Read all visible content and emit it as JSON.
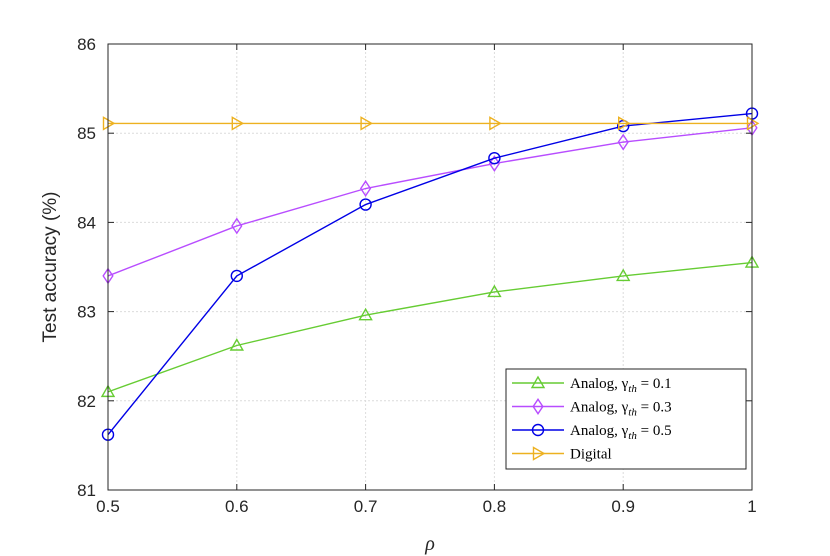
{
  "chart_data": {
    "type": "line",
    "x": [
      0.5,
      0.6,
      0.7,
      0.8,
      0.9,
      1
    ],
    "x_tick_labels": [
      "0.5",
      "0.6",
      "0.7",
      "0.8",
      "0.9",
      "1"
    ],
    "y_tick_labels": [
      "81",
      "82",
      "83",
      "84",
      "85",
      "86"
    ],
    "xlim": [
      0.5,
      1
    ],
    "ylim": [
      81,
      86
    ],
    "xlabel": "ρ",
    "ylabel": "Test accuracy (%)",
    "grid": true,
    "legend_position": "bottom-right",
    "series": [
      {
        "name": "Analog, γth = 0.1",
        "label_parts": {
          "prefix": "Analog, γ",
          "sub": "th",
          "suffix": " = 0.1"
        },
        "values": [
          82.1,
          82.62,
          82.96,
          83.22,
          83.4,
          83.55
        ],
        "color": "#66cc33",
        "marker": "triangle-up"
      },
      {
        "name": "Analog, γth = 0.3",
        "label_parts": {
          "prefix": "Analog, γ",
          "sub": "th",
          "suffix": " = 0.3"
        },
        "values": [
          83.4,
          83.96,
          84.38,
          84.66,
          84.9,
          85.06
        ],
        "color": "#b84dff",
        "marker": "diamond"
      },
      {
        "name": "Analog, γth = 0.5",
        "label_parts": {
          "prefix": "Analog, γ",
          "sub": "th",
          "suffix": " = 0.5"
        },
        "values": [
          81.62,
          83.4,
          84.2,
          84.72,
          85.08,
          85.22
        ],
        "color": "#0000e6",
        "marker": "circle"
      },
      {
        "name": "Digital",
        "label_parts": {
          "prefix": "Digital",
          "sub": "",
          "suffix": ""
        },
        "values": [
          85.11,
          85.11,
          85.11,
          85.11,
          85.11,
          85.11
        ],
        "color": "#edb120",
        "marker": "triangle-right"
      }
    ]
  }
}
